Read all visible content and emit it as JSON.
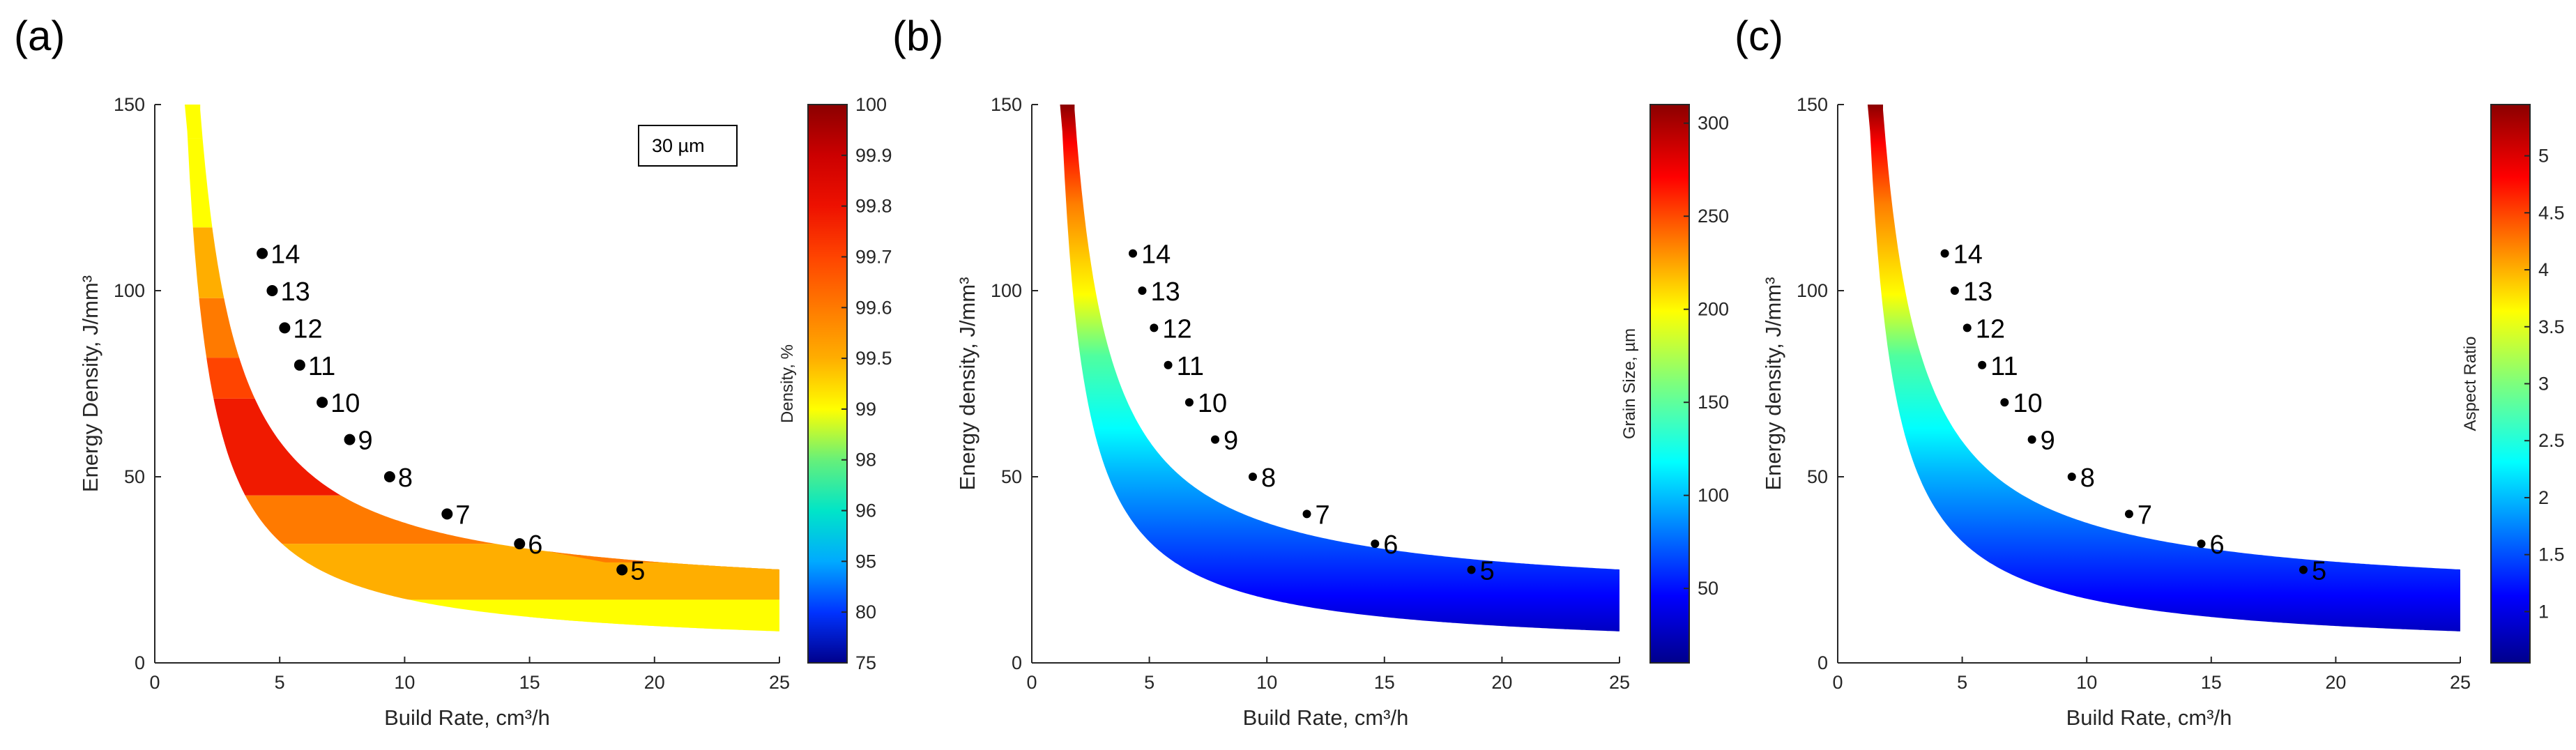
{
  "chart_data": [
    {
      "type": "heatmap",
      "panel_label": "(a)",
      "xlabel": "Build Rate, cm³/h",
      "ylabel": "Energy Density, J/mm³",
      "xlim": [
        0,
        25
      ],
      "ylim": [
        0,
        150
      ],
      "xticks": [
        "0",
        "5",
        "10",
        "15",
        "20",
        "25"
      ],
      "yticks": [
        "0",
        "50",
        "100",
        "150"
      ],
      "colorbar": {
        "label": "Density, %",
        "ticks": [
          "75",
          "80",
          "95",
          "96",
          "98",
          "99",
          "99.5",
          "99.6",
          "99.7",
          "99.8",
          "99.9",
          "100"
        ],
        "colors": [
          "#00008b",
          "#0033ff",
          "#00aaff",
          "#00e5c8",
          "#66f07a",
          "#ffff00",
          "#ffae00",
          "#ff7a00",
          "#ff4400",
          "#ee1100",
          "#cc0000",
          "#8b0000"
        ]
      },
      "annotation": "30 µm",
      "points": [
        {
          "label": "14",
          "x": 4.3,
          "y": 110
        },
        {
          "label": "13",
          "x": 4.7,
          "y": 100
        },
        {
          "label": "12",
          "x": 5.2,
          "y": 90
        },
        {
          "label": "11",
          "x": 5.8,
          "y": 80
        },
        {
          "label": "10",
          "x": 6.7,
          "y": 70
        },
        {
          "label": "9",
          "x": 7.8,
          "y": 60
        },
        {
          "label": "8",
          "x": 9.4,
          "y": 50
        },
        {
          "label": "7",
          "x": 11.7,
          "y": 40
        },
        {
          "label": "6",
          "x": 14.6,
          "y": 32
        },
        {
          "label": "5",
          "x": 18.7,
          "y": 25
        }
      ]
    },
    {
      "type": "heatmap",
      "panel_label": "(b)",
      "xlabel": "Build Rate, cm³/h",
      "ylabel": "Energy density, J/mm³",
      "xlim": [
        0,
        25
      ],
      "ylim": [
        0,
        150
      ],
      "xticks": [
        "0",
        "5",
        "10",
        "15",
        "20",
        "25"
      ],
      "yticks": [
        "0",
        "50",
        "100",
        "150"
      ],
      "colorbar": {
        "label": "Grain Size, µm",
        "range": [
          10,
          310
        ],
        "ticks": [
          "50",
          "100",
          "150",
          "200",
          "250",
          "300"
        ],
        "tick_values": [
          50,
          100,
          150,
          200,
          250,
          300
        ]
      },
      "points": [
        {
          "label": "14",
          "x": 4.3,
          "y": 110
        },
        {
          "label": "13",
          "x": 4.7,
          "y": 100
        },
        {
          "label": "12",
          "x": 5.2,
          "y": 90
        },
        {
          "label": "11",
          "x": 5.8,
          "y": 80
        },
        {
          "label": "10",
          "x": 6.7,
          "y": 70
        },
        {
          "label": "9",
          "x": 7.8,
          "y": 60
        },
        {
          "label": "8",
          "x": 9.4,
          "y": 50
        },
        {
          "label": "7",
          "x": 11.7,
          "y": 40
        },
        {
          "label": "6",
          "x": 14.6,
          "y": 32
        },
        {
          "label": "5",
          "x": 18.7,
          "y": 25
        }
      ]
    },
    {
      "type": "heatmap",
      "panel_label": "(c)",
      "xlabel": "Build Rate, cm³/h",
      "ylabel": "Energy density, J/mm³",
      "xlim": [
        0,
        25
      ],
      "ylim": [
        0,
        150
      ],
      "xticks": [
        "0",
        "5",
        "10",
        "15",
        "20",
        "25"
      ],
      "yticks": [
        "0",
        "50",
        "100",
        "150"
      ],
      "colorbar": {
        "label": "Aspect Ratio",
        "range": [
          0.55,
          5.45
        ],
        "ticks": [
          "1",
          "1.5",
          "2",
          "2.5",
          "3",
          "3.5",
          "4",
          "4.5",
          "5"
        ],
        "tick_values": [
          1,
          1.5,
          2,
          2.5,
          3,
          3.5,
          4,
          4.5,
          5
        ]
      },
      "points": [
        {
          "label": "14",
          "x": 4.3,
          "y": 110
        },
        {
          "label": "13",
          "x": 4.7,
          "y": 100
        },
        {
          "label": "12",
          "x": 5.2,
          "y": 90
        },
        {
          "label": "11",
          "x": 5.8,
          "y": 80
        },
        {
          "label": "10",
          "x": 6.7,
          "y": 70
        },
        {
          "label": "9",
          "x": 7.8,
          "y": 60
        },
        {
          "label": "8",
          "x": 9.4,
          "y": 50
        },
        {
          "label": "7",
          "x": 11.7,
          "y": 40
        },
        {
          "label": "6",
          "x": 14.6,
          "y": 32
        },
        {
          "label": "5",
          "x": 18.7,
          "y": 25
        }
      ]
    }
  ]
}
